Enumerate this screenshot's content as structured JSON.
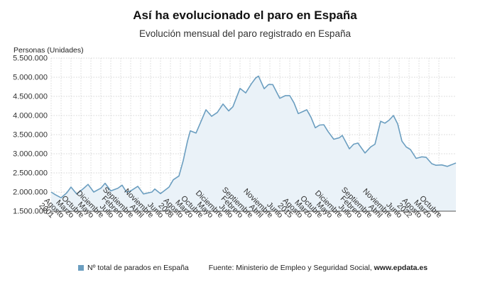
{
  "title": "Así ha evolucionado el paro en España",
  "subtitle": "Evolución mensual del paro registrado en España",
  "chart_data": {
    "type": "area",
    "title": "Así ha evolucionado el paro en España",
    "subtitle": "Evolución mensual del paro registrado en España",
    "ylabel": "Personas (Unidades)",
    "xlabel": "",
    "ylim": [
      1500000,
      5500000
    ],
    "yticks": [
      1500000,
      2000000,
      2500000,
      3000000,
      3500000,
      4000000,
      4500000,
      5000000,
      5500000
    ],
    "ytick_labels": [
      "1.500.000",
      "2.000.000",
      "2.500.000",
      "3.000.000",
      "3.500.000",
      "4.000.000",
      "4.500.000",
      "5.000.000",
      "5.500.000"
    ],
    "x_range": [
      "2001-01",
      "2024-10"
    ],
    "xticks": [
      {
        "date": "2001-01",
        "label": "2001"
      },
      {
        "date": "2001-08",
        "label": "Agosto"
      },
      {
        "date": "2002-03",
        "label": "Marzo"
      },
      {
        "date": "2002-10",
        "label": "Octubre"
      },
      {
        "date": "2003-05",
        "label": "Mayo"
      },
      {
        "date": "2003-12",
        "label": "Diciembre"
      },
      {
        "date": "2004-07",
        "label": "Julio"
      },
      {
        "date": "2005-02",
        "label": "Febrero"
      },
      {
        "date": "2005-09",
        "label": "Septiembre"
      },
      {
        "date": "2006-04",
        "label": "Abril"
      },
      {
        "date": "2006-11",
        "label": "Noviembre"
      },
      {
        "date": "2007-06",
        "label": "Junio"
      },
      {
        "date": "2008-01",
        "label": "2008"
      },
      {
        "date": "2008-08",
        "label": "Agosto"
      },
      {
        "date": "2009-03",
        "label": "Marzo"
      },
      {
        "date": "2009-10",
        "label": "Octubre"
      },
      {
        "date": "2010-05",
        "label": "Mayo"
      },
      {
        "date": "2010-12",
        "label": "Diciembre"
      },
      {
        "date": "2011-07",
        "label": "Julio"
      },
      {
        "date": "2012-02",
        "label": "Febrero"
      },
      {
        "date": "2012-09",
        "label": "Septiembre"
      },
      {
        "date": "2013-04",
        "label": "Abril"
      },
      {
        "date": "2013-11",
        "label": "Noviembre"
      },
      {
        "date": "2014-06",
        "label": "Junio"
      },
      {
        "date": "2015-01",
        "label": "2015"
      },
      {
        "date": "2015-08",
        "label": "Agosto"
      },
      {
        "date": "2016-03",
        "label": "Marzo"
      },
      {
        "date": "2016-10",
        "label": "Octubre"
      },
      {
        "date": "2017-05",
        "label": "Mayo"
      },
      {
        "date": "2017-12",
        "label": "Diciembre"
      },
      {
        "date": "2018-07",
        "label": "Julio"
      },
      {
        "date": "2019-02",
        "label": "Febrero"
      },
      {
        "date": "2019-09",
        "label": "Septiembre"
      },
      {
        "date": "2020-04",
        "label": "Abril"
      },
      {
        "date": "2020-11",
        "label": "Noviembre"
      },
      {
        "date": "2021-06",
        "label": "Junio"
      },
      {
        "date": "2022-01",
        "label": "2022"
      },
      {
        "date": "2022-08",
        "label": "Agosto"
      },
      {
        "date": "2023-03",
        "label": "Marzo"
      },
      {
        "date": "2023-10",
        "label": "Octubre"
      }
    ],
    "grid": true,
    "legend_position": "bottom",
    "series": [
      {
        "name": "Nº total de parados en España",
        "color": "#6b9ec0",
        "points": [
          [
            "2001-01",
            2000000
          ],
          [
            "2001-04",
            1930000
          ],
          [
            "2001-08",
            1850000
          ],
          [
            "2001-12",
            1980000
          ],
          [
            "2002-03",
            2130000
          ],
          [
            "2002-07",
            1950000
          ],
          [
            "2002-12",
            2100000
          ],
          [
            "2003-03",
            2200000
          ],
          [
            "2003-07",
            2000000
          ],
          [
            "2003-12",
            2100000
          ],
          [
            "2004-03",
            2230000
          ],
          [
            "2004-07",
            2030000
          ],
          [
            "2004-12",
            2100000
          ],
          [
            "2005-03",
            2180000
          ],
          [
            "2005-06",
            2000000
          ],
          [
            "2005-09",
            2030000
          ],
          [
            "2006-02",
            2150000
          ],
          [
            "2006-06",
            1950000
          ],
          [
            "2006-12",
            2000000
          ],
          [
            "2007-02",
            2080000
          ],
          [
            "2007-06",
            1960000
          ],
          [
            "2007-12",
            2130000
          ],
          [
            "2008-03",
            2320000
          ],
          [
            "2008-07",
            2420000
          ],
          [
            "2008-10",
            2820000
          ],
          [
            "2009-01",
            3330000
          ],
          [
            "2009-03",
            3600000
          ],
          [
            "2009-07",
            3540000
          ],
          [
            "2009-10",
            3800000
          ],
          [
            "2010-02",
            4150000
          ],
          [
            "2010-06",
            3980000
          ],
          [
            "2010-10",
            4080000
          ],
          [
            "2011-02",
            4300000
          ],
          [
            "2011-06",
            4120000
          ],
          [
            "2011-09",
            4230000
          ],
          [
            "2012-02",
            4710000
          ],
          [
            "2012-06",
            4590000
          ],
          [
            "2012-10",
            4830000
          ],
          [
            "2013-01",
            4980000
          ],
          [
            "2013-03",
            5030000
          ],
          [
            "2013-07",
            4700000
          ],
          [
            "2013-10",
            4810000
          ],
          [
            "2014-01",
            4810000
          ],
          [
            "2014-06",
            4450000
          ],
          [
            "2014-10",
            4520000
          ],
          [
            "2015-01",
            4520000
          ],
          [
            "2015-04",
            4330000
          ],
          [
            "2015-07",
            4050000
          ],
          [
            "2015-10",
            4100000
          ],
          [
            "2016-01",
            4150000
          ],
          [
            "2016-04",
            3950000
          ],
          [
            "2016-07",
            3680000
          ],
          [
            "2016-10",
            3750000
          ],
          [
            "2017-01",
            3760000
          ],
          [
            "2017-04",
            3580000
          ],
          [
            "2017-08",
            3380000
          ],
          [
            "2017-12",
            3420000
          ],
          [
            "2018-02",
            3480000
          ],
          [
            "2018-07",
            3130000
          ],
          [
            "2018-10",
            3250000
          ],
          [
            "2019-01",
            3280000
          ],
          [
            "2019-06",
            3020000
          ],
          [
            "2019-10",
            3180000
          ],
          [
            "2020-01",
            3250000
          ],
          [
            "2020-05",
            3850000
          ],
          [
            "2020-08",
            3800000
          ],
          [
            "2020-11",
            3880000
          ],
          [
            "2021-02",
            4000000
          ],
          [
            "2021-05",
            3780000
          ],
          [
            "2021-08",
            3330000
          ],
          [
            "2021-11",
            3180000
          ],
          [
            "2022-02",
            3110000
          ],
          [
            "2022-06",
            2880000
          ],
          [
            "2022-10",
            2920000
          ],
          [
            "2023-01",
            2910000
          ],
          [
            "2023-05",
            2740000
          ],
          [
            "2023-08",
            2700000
          ],
          [
            "2023-12",
            2710000
          ],
          [
            "2024-04",
            2670000
          ],
          [
            "2024-10",
            2760000
          ]
        ]
      }
    ]
  },
  "legend": {
    "series_label": "Nº total de parados en España",
    "source_prefix": "Fuente: Ministerio de Empleo y Seguridad Social, ",
    "source_site": "www.epdata.es"
  }
}
